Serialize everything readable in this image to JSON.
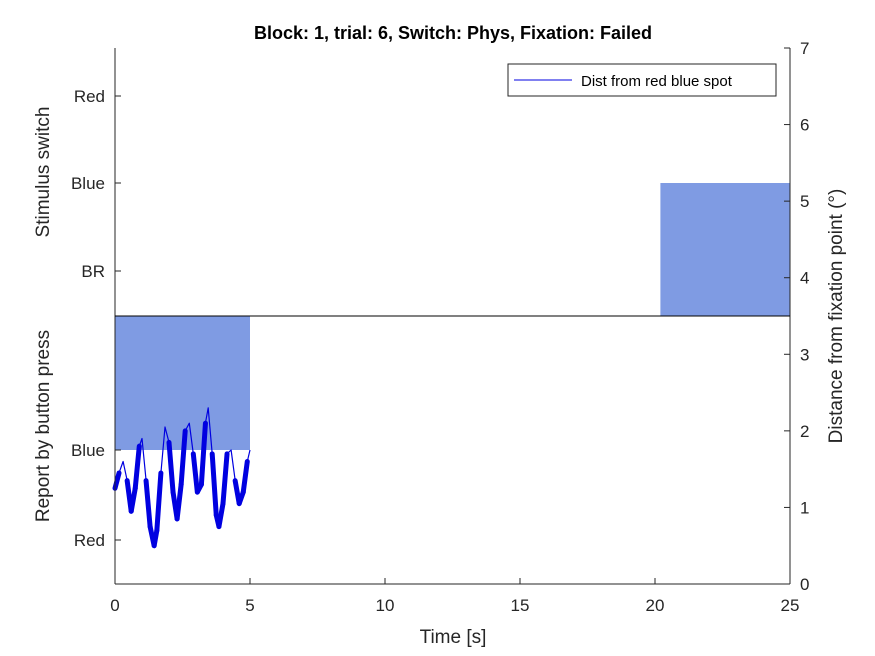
{
  "chart_data": {
    "type": "area",
    "title": "Block: 1, trial: 6, Switch: Phys, Fixation: Failed",
    "xlabel": "Time [s]",
    "xlim": [
      0,
      25
    ],
    "xticks": [
      "0",
      "5",
      "10",
      "15",
      "20",
      "25"
    ],
    "y_right_label": "Distance from fixation point (°)",
    "y_right_lim": [
      0,
      7
    ],
    "y_right_ticks": [
      "0",
      "1",
      "2",
      "3",
      "4",
      "5",
      "6",
      "7"
    ],
    "top_panel": {
      "ylabel": "Stimulus switch",
      "tick_labels": [
        "Red",
        "Blue",
        "BR"
      ],
      "blocks": [
        {
          "state": "Blue",
          "x_start": 20.2,
          "x_end": 25
        }
      ]
    },
    "bottom_panel": {
      "ylabel": "Report by button press",
      "tick_labels": [
        "Blue",
        "Red"
      ],
      "blocks": [
        {
          "state": "Blue",
          "x_start": 0,
          "x_end": 5
        }
      ]
    },
    "series": [
      {
        "name": "Dist from red blue spot",
        "x": [
          0.0,
          0.15,
          0.3,
          0.45,
          0.6,
          0.75,
          0.9,
          1.0,
          1.15,
          1.3,
          1.45,
          1.55,
          1.7,
          1.85,
          2.0,
          2.15,
          2.3,
          2.45,
          2.6,
          2.75,
          2.9,
          3.05,
          3.2,
          3.35,
          3.45,
          3.6,
          3.75,
          3.85,
          4.0,
          4.15,
          4.3,
          4.45,
          4.6,
          4.75,
          4.9,
          5.0
        ],
        "y": [
          1.25,
          1.45,
          1.6,
          1.35,
          0.95,
          1.25,
          1.8,
          1.9,
          1.35,
          0.75,
          0.5,
          0.7,
          1.45,
          2.05,
          1.85,
          1.2,
          0.85,
          1.3,
          2.0,
          2.1,
          1.7,
          1.2,
          1.3,
          2.1,
          2.3,
          1.7,
          0.9,
          0.75,
          1.05,
          1.7,
          1.75,
          1.35,
          1.05,
          1.2,
          1.6,
          1.75
        ]
      }
    ],
    "colors": {
      "block_fill": "#7f9be3",
      "line": "#0000e0"
    },
    "legend_position": "top-right"
  }
}
